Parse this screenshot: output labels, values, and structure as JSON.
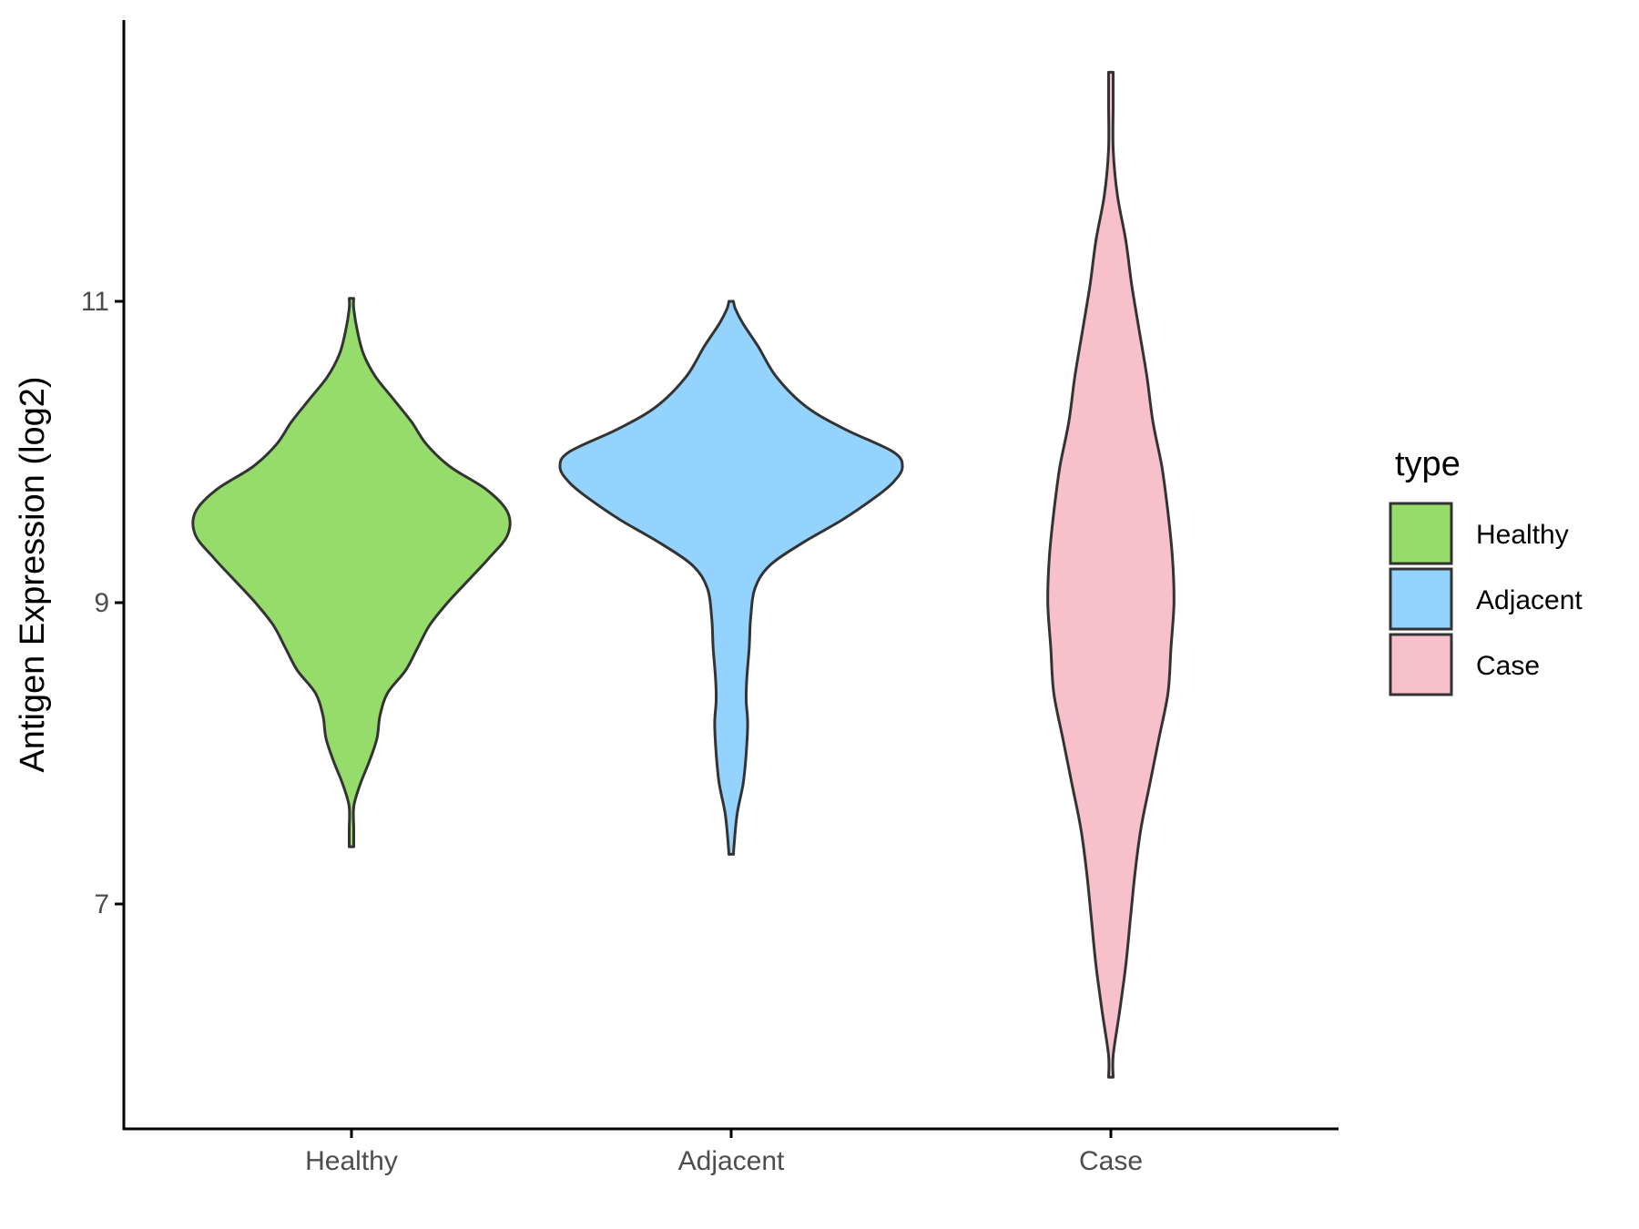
{
  "chart_data": {
    "type": "violin",
    "title": "",
    "xlabel": "",
    "ylabel": "Antigen Expression (log2)",
    "ylim": [
      5.5,
      12.85
    ],
    "yticks": [
      7,
      9,
      11
    ],
    "ytick_labels": [
      "7",
      "9",
      "11"
    ],
    "categories": [
      "Healthy",
      "Adjacent",
      "Case"
    ],
    "legend": {
      "title": "type",
      "position": "right",
      "entries": [
        "Healthy",
        "Adjacent",
        "Case"
      ]
    },
    "colors": {
      "Healthy": "#95dc6a",
      "Adjacent": "#94d3fd",
      "Case": "#f7c0cb",
      "outline": "#333333",
      "axis": "#000000"
    },
    "grid": false,
    "series": [
      {
        "category": "Healthy",
        "min": 7.38,
        "max": 11.02,
        "density_profile": [
          [
            7.38,
            0.003
          ],
          [
            7.5,
            0.005
          ],
          [
            7.65,
            0.008
          ],
          [
            7.8,
            0.03
          ],
          [
            7.95,
            0.06
          ],
          [
            8.1,
            0.085
          ],
          [
            8.25,
            0.095
          ],
          [
            8.4,
            0.12
          ],
          [
            8.55,
            0.18
          ],
          [
            8.7,
            0.22
          ],
          [
            8.85,
            0.26
          ],
          [
            9.0,
            0.32
          ],
          [
            9.15,
            0.39
          ],
          [
            9.3,
            0.46
          ],
          [
            9.45,
            0.52
          ],
          [
            9.6,
            0.52
          ],
          [
            9.75,
            0.45
          ],
          [
            9.9,
            0.33
          ],
          [
            10.05,
            0.25
          ],
          [
            10.2,
            0.2
          ],
          [
            10.35,
            0.14
          ],
          [
            10.5,
            0.08
          ],
          [
            10.65,
            0.04
          ],
          [
            10.8,
            0.02
          ],
          [
            10.95,
            0.006
          ],
          [
            11.02,
            0.003
          ]
        ]
      },
      {
        "category": "Adjacent",
        "min": 7.33,
        "max": 11.0,
        "density_profile": [
          [
            7.33,
            0.0
          ],
          [
            7.4,
            0.01
          ],
          [
            7.6,
            0.02
          ],
          [
            7.8,
            0.04
          ],
          [
            8.0,
            0.05
          ],
          [
            8.2,
            0.055
          ],
          [
            8.35,
            0.05
          ],
          [
            8.5,
            0.052
          ],
          [
            8.7,
            0.06
          ],
          [
            8.9,
            0.065
          ],
          [
            9.1,
            0.08
          ],
          [
            9.25,
            0.13
          ],
          [
            9.4,
            0.24
          ],
          [
            9.55,
            0.37
          ],
          [
            9.7,
            0.48
          ],
          [
            9.8,
            0.54
          ],
          [
            9.9,
            0.57
          ],
          [
            10.0,
            0.54
          ],
          [
            10.15,
            0.38
          ],
          [
            10.3,
            0.25
          ],
          [
            10.5,
            0.15
          ],
          [
            10.7,
            0.09
          ],
          [
            10.85,
            0.04
          ],
          [
            10.95,
            0.014
          ],
          [
            11.0,
            0.0
          ]
        ]
      },
      {
        "category": "Case",
        "min": 5.85,
        "max": 12.52,
        "density_profile": [
          [
            5.85,
            0.0
          ],
          [
            6.0,
            0.008
          ],
          [
            6.3,
            0.03
          ],
          [
            6.6,
            0.05
          ],
          [
            6.9,
            0.065
          ],
          [
            7.2,
            0.08
          ],
          [
            7.5,
            0.1
          ],
          [
            7.8,
            0.13
          ],
          [
            8.1,
            0.16
          ],
          [
            8.4,
            0.19
          ],
          [
            8.7,
            0.2
          ],
          [
            9.0,
            0.21
          ],
          [
            9.3,
            0.205
          ],
          [
            9.6,
            0.19
          ],
          [
            9.9,
            0.17
          ],
          [
            10.2,
            0.14
          ],
          [
            10.5,
            0.12
          ],
          [
            10.8,
            0.095
          ],
          [
            11.1,
            0.07
          ],
          [
            11.4,
            0.05
          ],
          [
            11.7,
            0.022
          ],
          [
            12.0,
            0.008
          ],
          [
            12.3,
            0.004
          ],
          [
            12.52,
            0.001
          ]
        ]
      }
    ]
  }
}
